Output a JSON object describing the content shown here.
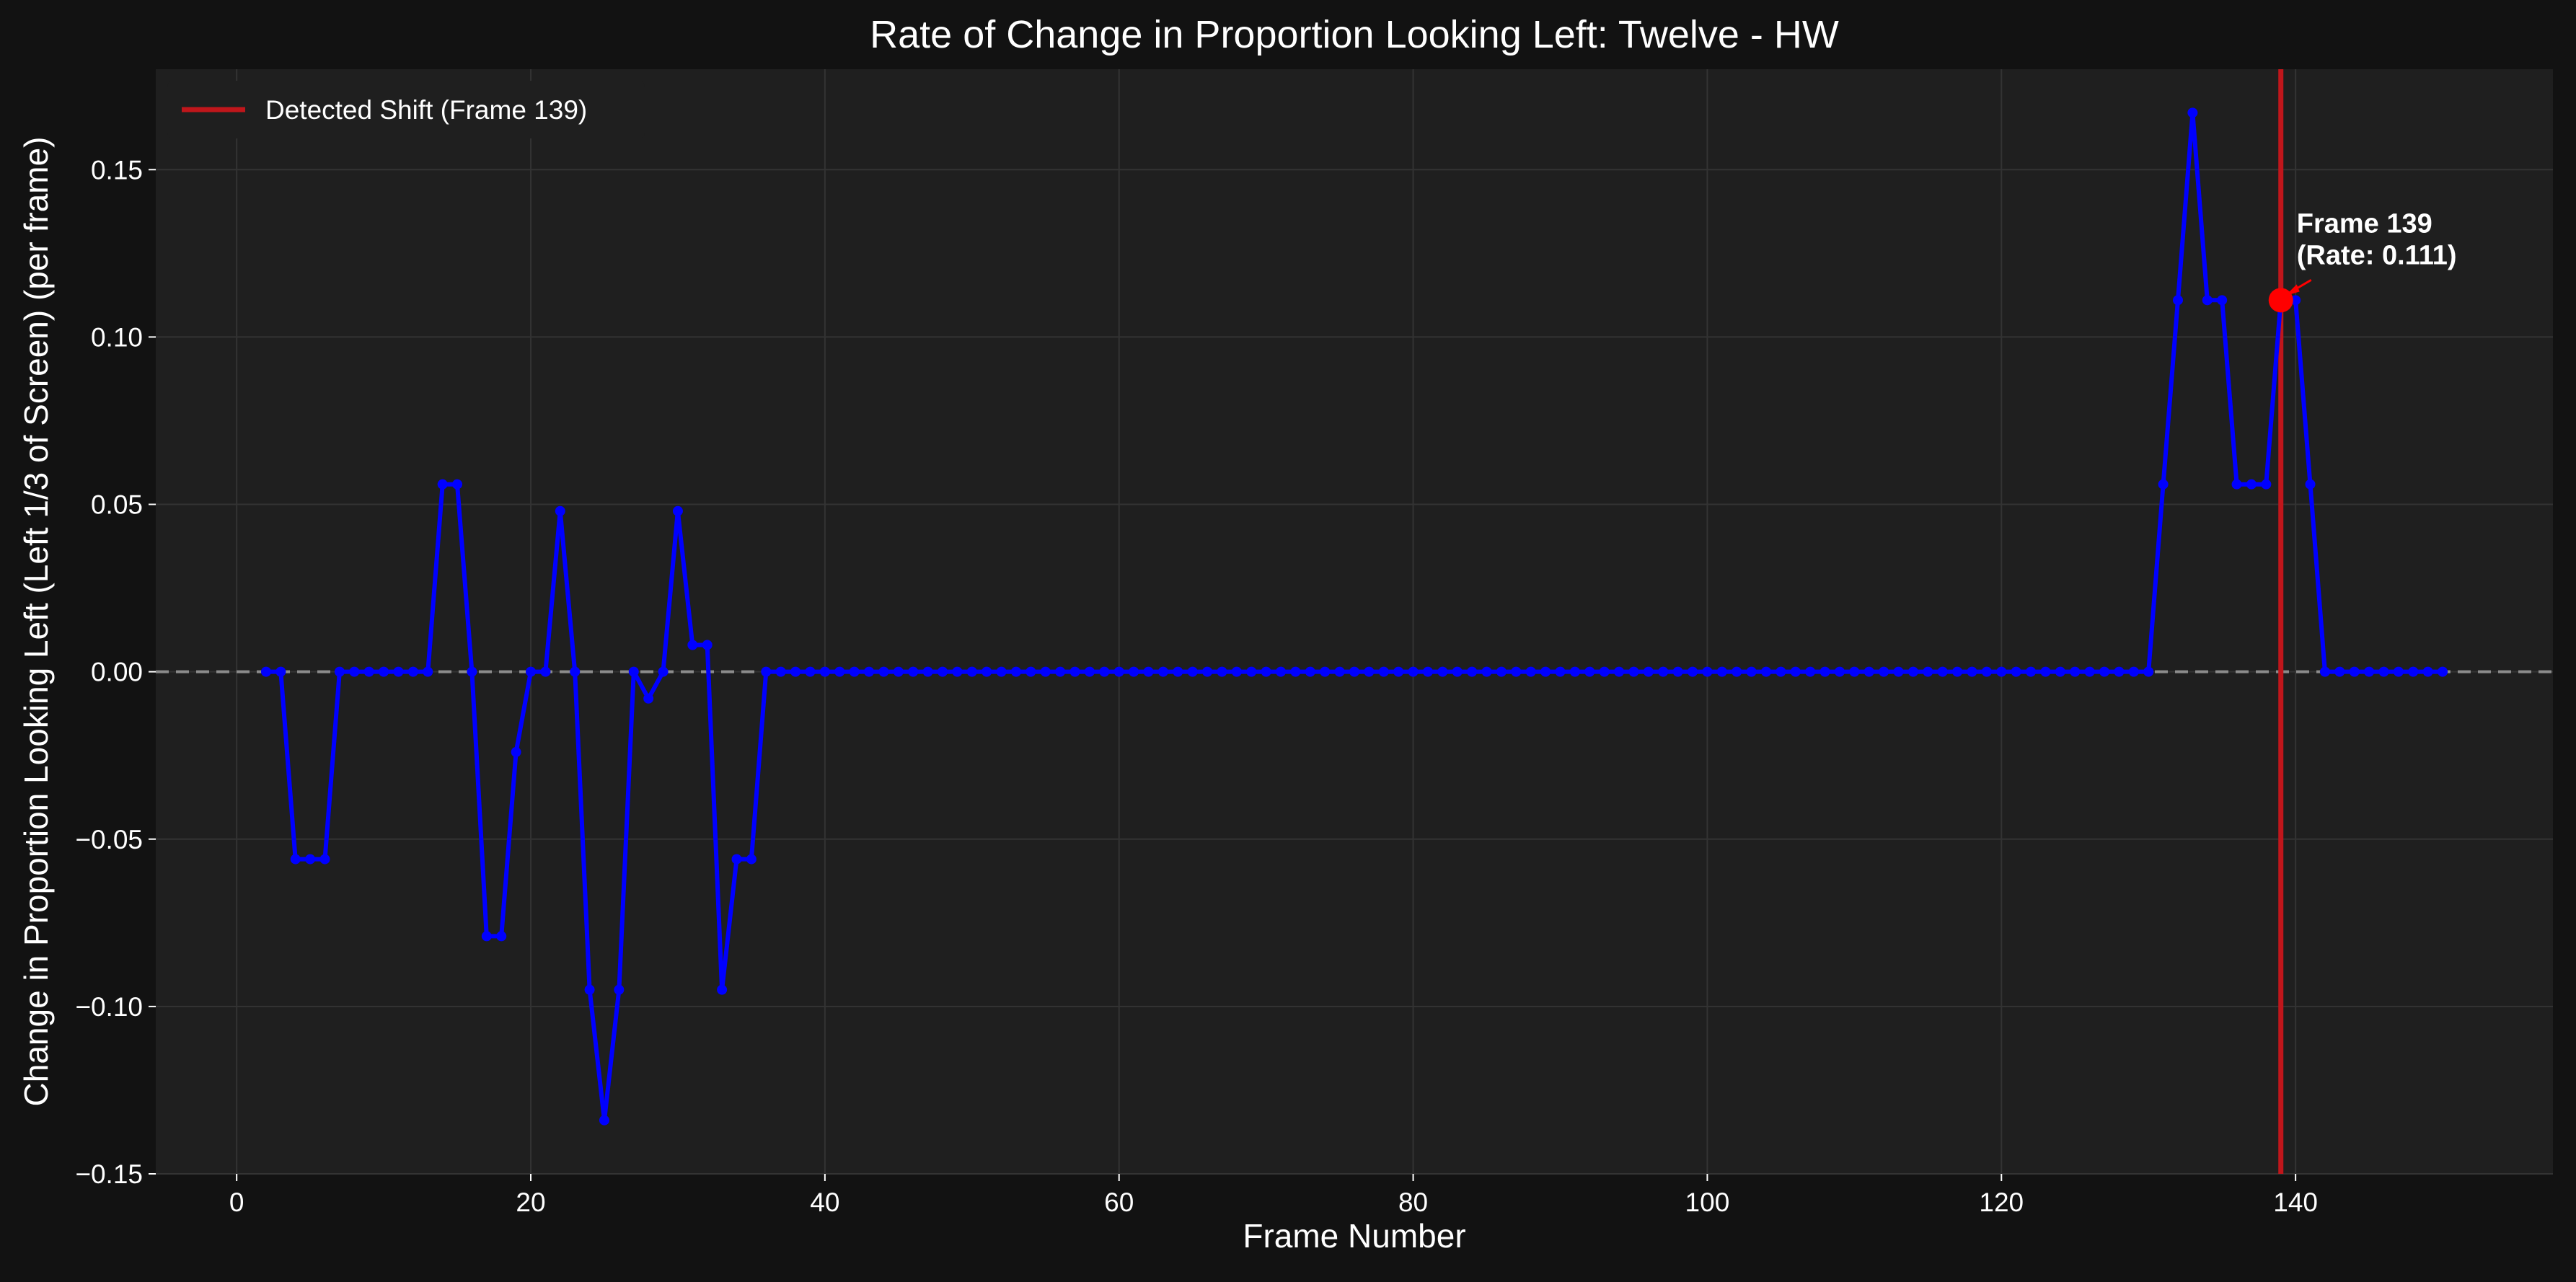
{
  "chart_data": {
    "type": "line",
    "title": "Rate of Change in Proportion Looking Left: Twelve - HW",
    "xlabel": "Frame Number",
    "ylabel": "Change in Proportion Looking Left (Left 1/3 of Screen) (per frame)",
    "xlim": [
      -5.5,
      157.5
    ],
    "ylim": [
      -0.15,
      0.18
    ],
    "xticks": [
      0,
      20,
      40,
      60,
      80,
      100,
      120,
      140
    ],
    "xtick_labels": [
      "0",
      "20",
      "40",
      "60",
      "80",
      "100",
      "120",
      "140"
    ],
    "yticks": [
      -0.15,
      -0.1,
      -0.05,
      0.0,
      0.05,
      0.1,
      0.15
    ],
    "ytick_labels": [
      "−0.15",
      "−0.10",
      "−0.05",
      "0.00",
      "0.05",
      "0.10",
      "0.15"
    ],
    "grid": true,
    "legend": {
      "position": "top-left",
      "entries": [
        "Detected Shift (Frame 139)"
      ]
    },
    "series": [
      {
        "x": [
          2,
          3,
          4,
          5,
          6,
          7,
          8,
          9,
          10,
          11,
          12,
          13,
          14,
          15,
          16,
          17,
          18,
          19,
          20,
          21,
          22,
          23,
          24,
          25,
          26,
          27,
          28,
          29,
          30,
          31,
          32,
          33,
          34,
          35,
          36,
          37,
          38,
          39,
          40,
          41,
          42,
          43,
          44,
          45,
          46,
          47,
          48,
          49,
          50,
          51,
          52,
          53,
          54,
          55,
          56,
          57,
          58,
          59,
          60,
          61,
          62,
          63,
          64,
          65,
          66,
          67,
          68,
          69,
          70,
          71,
          72,
          73,
          74,
          75,
          76,
          77,
          78,
          79,
          80,
          81,
          82,
          83,
          84,
          85,
          86,
          87,
          88,
          89,
          90,
          91,
          92,
          93,
          94,
          95,
          96,
          97,
          98,
          99,
          100,
          101,
          102,
          103,
          104,
          105,
          106,
          107,
          108,
          109,
          110,
          111,
          112,
          113,
          114,
          115,
          116,
          117,
          118,
          119,
          120,
          121,
          122,
          123,
          124,
          125,
          126,
          127,
          128,
          129,
          130,
          131,
          132,
          133,
          134,
          135,
          136,
          137,
          138,
          139,
          140,
          141,
          142,
          143,
          144,
          145,
          146,
          147,
          148,
          149,
          150
        ],
        "values": [
          0.0,
          0.0,
          -0.056,
          -0.056,
          -0.056,
          0.0,
          0.0,
          0.0,
          0.0,
          0.0,
          0.0,
          0.0,
          0.056,
          0.056,
          0.0,
          -0.079,
          -0.079,
          -0.024,
          0.0,
          0.0,
          0.048,
          0.0,
          -0.095,
          -0.134,
          -0.095,
          0.0,
          -0.008,
          0.0,
          0.048,
          0.008,
          0.008,
          -0.095,
          -0.056,
          -0.056,
          0.0,
          0.0,
          0.0,
          0.0,
          0.0,
          0.0,
          0.0,
          0.0,
          0.0,
          0.0,
          0.0,
          0.0,
          0.0,
          0.0,
          0.0,
          0.0,
          0.0,
          0.0,
          0.0,
          0.0,
          0.0,
          0.0,
          0.0,
          0.0,
          0.0,
          0.0,
          0.0,
          0.0,
          0.0,
          0.0,
          0.0,
          0.0,
          0.0,
          0.0,
          0.0,
          0.0,
          0.0,
          0.0,
          0.0,
          0.0,
          0.0,
          0.0,
          0.0,
          0.0,
          0.0,
          0.0,
          0.0,
          0.0,
          0.0,
          0.0,
          0.0,
          0.0,
          0.0,
          0.0,
          0.0,
          0.0,
          0.0,
          0.0,
          0.0,
          0.0,
          0.0,
          0.0,
          0.0,
          0.0,
          0.0,
          0.0,
          0.0,
          0.0,
          0.0,
          0.0,
          0.0,
          0.0,
          0.0,
          0.0,
          0.0,
          0.0,
          0.0,
          0.0,
          0.0,
          0.0,
          0.0,
          0.0,
          0.0,
          0.0,
          0.0,
          0.0,
          0.0,
          0.0,
          0.0,
          0.0,
          0.0,
          0.0,
          0.0,
          0.0,
          0.0,
          0.056,
          0.111,
          0.167,
          0.111,
          0.111,
          0.056,
          0.056,
          0.056,
          0.111,
          0.111,
          0.056,
          0.0,
          0.0,
          0.0,
          0.0,
          0.0,
          0.0,
          0.0,
          0.0,
          0.0
        ],
        "color": "#0000ff"
      }
    ],
    "reference_lines": [
      {
        "axis": "y",
        "value": 0.0,
        "style": "dashed",
        "color": "#8c8c8c"
      },
      {
        "axis": "x",
        "value": 139,
        "style": "solid",
        "color": "#c0161b",
        "label": "Detected Shift (Frame 139)"
      }
    ],
    "highlight_point": {
      "x": 139,
      "y": 0.111,
      "color": "#ff0000"
    },
    "annotation": {
      "lines": [
        "Frame 139",
        "(Rate: 0.111)"
      ],
      "target_x": 139,
      "target_y": 0.111
    },
    "colors": {
      "background": "#121212",
      "plot_background": "#1f1f1f",
      "grid": "#333333",
      "text": "#ffffff"
    }
  }
}
